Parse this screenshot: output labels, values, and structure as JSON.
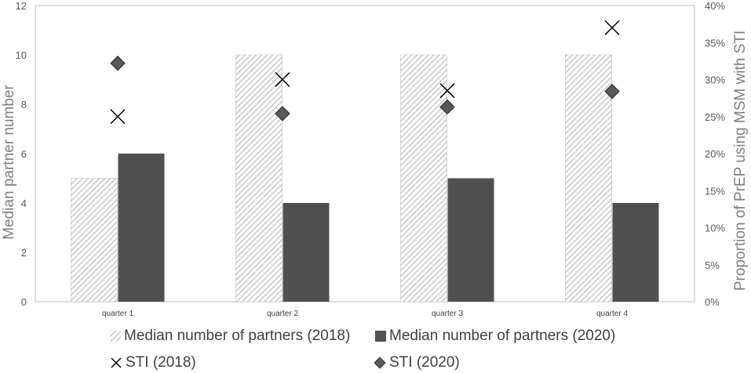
{
  "chart_data": {
    "type": "bar",
    "categories": [
      "quarter 1",
      "quarter 2",
      "quarter 3",
      "quarter 4"
    ],
    "series": [
      {
        "name": "Median number of partners (2018)",
        "kind": "bar",
        "axis": "left",
        "pattern": "hatched",
        "color": "#a6a6a6",
        "values": [
          5,
          10,
          10,
          10
        ]
      },
      {
        "name": "Median number of partners (2020)",
        "kind": "bar",
        "axis": "left",
        "pattern": "solid",
        "color": "#505050",
        "values": [
          6,
          4,
          5,
          4
        ]
      },
      {
        "name": "STI (2018)",
        "kind": "marker",
        "marker": "x",
        "axis": "right",
        "color": "#000000",
        "values": [
          25,
          30,
          28.5,
          37
        ]
      },
      {
        "name": "STI (2020)",
        "kind": "marker",
        "marker": "diamond",
        "axis": "right",
        "color": "#595959",
        "values": [
          32.2,
          25.4,
          26.3,
          28.4
        ]
      }
    ],
    "ylabel": "Median partner number",
    "y2label": "Proportion of PrEP using MSM with STI",
    "ylim": [
      0,
      12
    ],
    "y2lim": [
      0,
      40
    ],
    "yticks": [
      "0",
      "2",
      "4",
      "6",
      "8",
      "10",
      "12"
    ],
    "y2ticks": [
      "0%",
      "5%",
      "10%",
      "15%",
      "20%",
      "25%",
      "30%",
      "35%",
      "40%"
    ],
    "legend_position": "bottom",
    "grid": false
  }
}
